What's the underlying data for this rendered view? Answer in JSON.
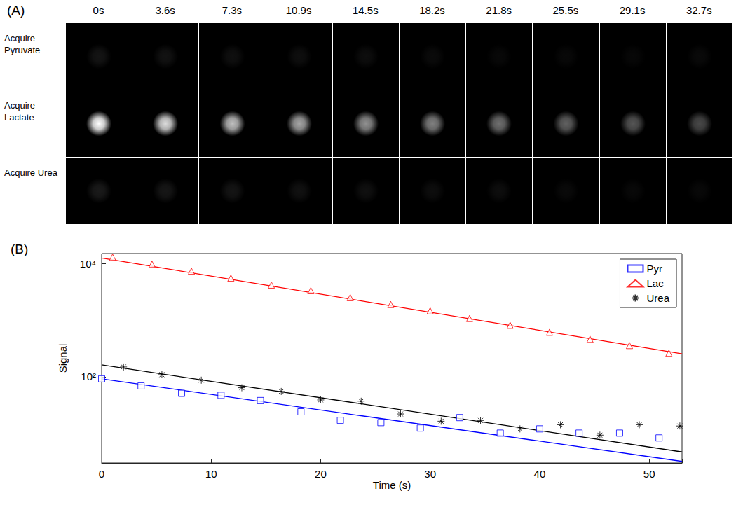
{
  "panel_a": {
    "label": "(A)",
    "times": [
      "0s",
      "3.6s",
      "7.3s",
      "10.9s",
      "14.5s",
      "18.2s",
      "21.8s",
      "25.5s",
      "29.1s",
      "32.7s"
    ],
    "rows": [
      "Acquire Pyruvate",
      "Acquire Lactate",
      "Acquire Urea"
    ]
  },
  "chart_data": {
    "type": "scatter",
    "title": "(B)",
    "x_label": "Time (s)",
    "y_label": "Signal",
    "xlim": [
      0,
      53
    ],
    "xticks": [
      0,
      10,
      20,
      30,
      40,
      50
    ],
    "ylim": [
      3,
      15000
    ],
    "yticks": [
      {
        "value": 100,
        "label": "10²"
      },
      {
        "value": 10000,
        "label": "10⁴"
      }
    ],
    "log": "y",
    "grid": false,
    "legend": "upper right",
    "series": [
      {
        "name": "Pyr",
        "color": "#0000ff",
        "marker": "square",
        "x": [
          0,
          3.6,
          7.3,
          10.9,
          14.5,
          18.2,
          21.8,
          25.5,
          29.1,
          32.7,
          36.4,
          40,
          43.6,
          47.3,
          50.9
        ],
        "values": [
          92,
          69,
          51,
          47,
          38,
          24,
          17,
          15.5,
          12.4,
          19,
          10.1,
          12,
          10.1,
          10.1,
          8.3
        ],
        "fit": {
          "x": [
            0,
            53
          ],
          "values": [
            92,
            3.2
          ]
        }
      },
      {
        "name": "Lac",
        "color": "#ff0000",
        "marker": "triangle",
        "x": [
          1,
          4.6,
          8.2,
          11.8,
          15.5,
          19.1,
          22.7,
          26.4,
          30,
          33.6,
          37.3,
          40.9,
          44.6,
          48.2,
          51.8
        ],
        "values": [
          12900,
          9720,
          7330,
          5520,
          4170,
          3320,
          2500,
          1890,
          1460,
          1070,
          810,
          610,
          460,
          356,
          261
        ],
        "fit": {
          "x": [
            0,
            53
          ],
          "values": [
            12540,
            254
          ]
        }
      },
      {
        "name": "Urea",
        "color": "#000000",
        "marker": "asterisk",
        "x": [
          2,
          5.5,
          9.1,
          12.8,
          16.4,
          20,
          23.7,
          27.3,
          31,
          34.6,
          38.2,
          41.9,
          45.5,
          49.1,
          52.8
        ],
        "values": [
          149,
          109,
          87,
          64,
          55,
          39,
          37,
          22,
          16.4,
          16.9,
          12,
          14.2,
          9.3,
          14.2,
          13.5
        ],
        "fit": {
          "x": [
            0,
            53
          ],
          "values": [
            162,
            4.7
          ]
        }
      }
    ]
  }
}
